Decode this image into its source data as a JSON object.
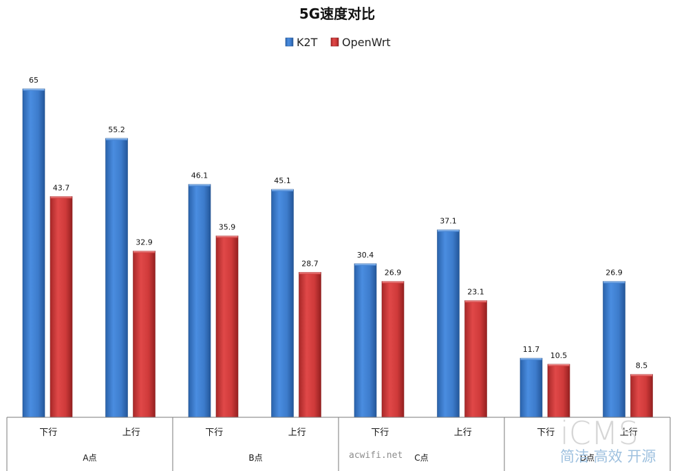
{
  "chart_data": {
    "type": "bar",
    "title": "5G速度对比",
    "groups": [
      "A点",
      "B点",
      "C点",
      "D点"
    ],
    "categories": [
      "下行",
      "上行",
      "下行",
      "上行",
      "下行",
      "上行",
      "下行",
      "上行"
    ],
    "series": [
      {
        "name": "K2T",
        "color": "#3f7fd0",
        "values": [
          65,
          55.2,
          46.1,
          45.1,
          30.4,
          37.1,
          11.7,
          26.9
        ]
      },
      {
        "name": "OpenWrt",
        "color": "#d03a3a",
        "values": [
          43.7,
          32.9,
          35.9,
          28.7,
          26.9,
          23.1,
          10.5,
          8.5
        ]
      }
    ],
    "value_labels": [
      [
        "65",
        "55.2",
        "46.1",
        "45.1",
        "30.4",
        "37.1",
        "11.7",
        "26.9"
      ],
      [
        "43.7",
        "32.9",
        "35.9",
        "28.7",
        "26.9",
        "23.1",
        "10.5",
        "8.5"
      ]
    ],
    "ylim": [
      0,
      65
    ],
    "legend_position": "top-center",
    "grid": false
  },
  "watermarks": {
    "site": "acwifi.net",
    "logo": "iCMS",
    "slogan": "简洁 高效 开源"
  }
}
